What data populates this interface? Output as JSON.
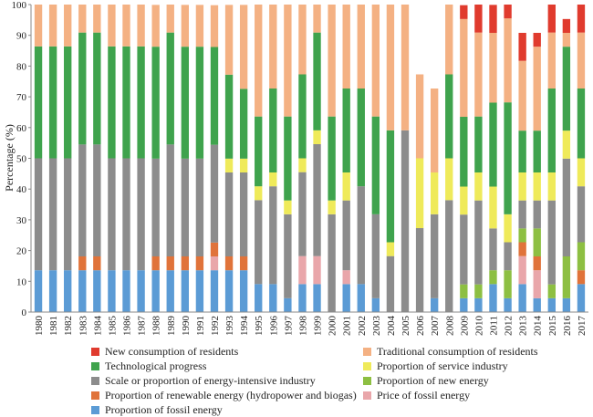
{
  "chart_data": {
    "type": "bar",
    "stacked": true,
    "ylabel": "Percentage (%)",
    "ylim": [
      0,
      100
    ],
    "yticks": [
      0,
      10,
      20,
      30,
      40,
      50,
      60,
      70,
      80,
      90,
      100
    ],
    "grid": false,
    "legend_position": "bottom",
    "categories": [
      "1980",
      "1981",
      "1982",
      "1983",
      "1984",
      "1985",
      "1986",
      "1987",
      "1988",
      "1989",
      "1990",
      "1991",
      "1992",
      "1993",
      "1994",
      "1995",
      "1996",
      "1997",
      "1998",
      "1999",
      "2000",
      "2001",
      "2002",
      "2003",
      "2004",
      "2005",
      "2006",
      "2007",
      "2008",
      "2009",
      "2010",
      "2011",
      "2012",
      "2013",
      "2014",
      "2015",
      "2016",
      "2017"
    ],
    "series": [
      {
        "name": "Proportion of fossil energy",
        "color": "#5B9BD5",
        "values": [
          13.6,
          13.6,
          13.6,
          13.6,
          13.6,
          13.6,
          13.6,
          13.6,
          13.6,
          13.6,
          13.6,
          13.6,
          13.6,
          13.6,
          13.6,
          9.1,
          9.1,
          4.5,
          9.1,
          9.1,
          0,
          9.1,
          9.1,
          4.5,
          0,
          0,
          0,
          4.5,
          0,
          4.5,
          4.5,
          9.1,
          4.5,
          9.1,
          4.5,
          4.5,
          4.5,
          9.1
        ]
      },
      {
        "name": "Price of fossil energy",
        "color": "#E9A6AA",
        "values": [
          0,
          0,
          0,
          0,
          0,
          0,
          0,
          0,
          0,
          0,
          0,
          0,
          4.5,
          0,
          0,
          0,
          0,
          0,
          9.1,
          9.1,
          0,
          4.5,
          0,
          0,
          0,
          0,
          0,
          0,
          0,
          0,
          0,
          0,
          0,
          9.1,
          9.1,
          0,
          0,
          0
        ]
      },
      {
        "name": "Proportion of renewable energy (hydropower and biogas)",
        "color": "#E0733A",
        "values": [
          0,
          0,
          0,
          4.5,
          4.5,
          0,
          0,
          0,
          4.5,
          4.5,
          4.5,
          4.5,
          4.5,
          4.5,
          4.5,
          0,
          0,
          0,
          0,
          0,
          0,
          0,
          0,
          0,
          0,
          0,
          0,
          0,
          0,
          0,
          0,
          0,
          0,
          4.5,
          4.5,
          0,
          0,
          4.5
        ]
      },
      {
        "name": "Proportion of new energy",
        "color": "#8DBF42",
        "values": [
          0,
          0,
          0,
          0,
          0,
          0,
          0,
          0,
          0,
          0,
          0,
          0,
          0,
          0,
          0,
          0,
          0,
          0,
          0,
          0,
          0,
          0,
          0,
          0,
          0,
          0,
          0,
          0,
          0,
          4.5,
          4.5,
          4.5,
          9.1,
          4.5,
          9.1,
          4.5,
          13.6,
          9.1
        ]
      },
      {
        "name": "Scale or proportion of energy-intensive industry",
        "color": "#8C8C8C",
        "values": [
          36.4,
          36.4,
          36.4,
          36.4,
          36.4,
          36.4,
          36.4,
          36.4,
          31.8,
          36.4,
          31.8,
          31.8,
          31.8,
          27.3,
          27.3,
          27.3,
          31.8,
          27.3,
          27.3,
          36.4,
          31.8,
          22.7,
          31.8,
          27.3,
          18.2,
          59.1,
          27.3,
          27.3,
          36.4,
          22.7,
          27.3,
          13.6,
          9.1,
          9.1,
          9.1,
          27.3,
          31.8,
          18.2
        ]
      },
      {
        "name": "Proportion of service industry",
        "color": "#EFEA5A",
        "values": [
          0,
          0,
          0,
          0,
          0,
          0,
          0,
          0,
          0,
          0,
          0,
          0,
          0,
          4.5,
          4.5,
          4.5,
          4.5,
          4.5,
          4.5,
          4.5,
          4.5,
          9.1,
          0,
          0,
          4.5,
          0,
          22.7,
          13.6,
          13.6,
          9.1,
          9.1,
          13.6,
          9.1,
          9.1,
          9.1,
          9.1,
          9.1,
          9.1
        ]
      },
      {
        "name": "Technological progress",
        "color": "#3FA34D",
        "values": [
          36.4,
          36.4,
          36.4,
          36.4,
          36.4,
          36.4,
          36.4,
          36.4,
          36.4,
          36.4,
          36.4,
          36.4,
          31.8,
          27.3,
          22.7,
          22.7,
          27.3,
          27.3,
          27.3,
          31.8,
          27.3,
          27.3,
          31.8,
          31.8,
          36.4,
          0,
          0,
          0,
          27.3,
          22.7,
          18.2,
          27.3,
          36.4,
          13.6,
          13.6,
          27.3,
          27.3,
          22.7
        ]
      },
      {
        "name": "Traditional consumption of residents",
        "color": "#F4B183",
        "values": [
          13.6,
          13.6,
          13.6,
          9.1,
          9.1,
          13.6,
          13.6,
          13.6,
          13.6,
          9.1,
          13.6,
          13.6,
          13.6,
          22.7,
          27.3,
          36.4,
          27.3,
          36.4,
          22.7,
          9.1,
          36.4,
          27.3,
          27.3,
          36.4,
          40.9,
          40.9,
          27.3,
          27.3,
          22.7,
          31.8,
          27.3,
          22.7,
          27.3,
          22.7,
          27.3,
          18.2,
          4.5,
          18.2
        ]
      },
      {
        "name": "New consumption of residents",
        "color": "#E03B2E",
        "values": [
          0,
          0,
          0,
          0,
          0,
          0,
          0,
          0,
          0,
          0,
          0,
          0,
          0,
          0,
          0,
          0,
          0,
          0,
          0,
          0,
          0,
          0,
          0,
          0,
          0,
          0,
          0,
          0,
          0,
          4.5,
          9.1,
          9.1,
          4.5,
          9.1,
          4.5,
          9.1,
          4.5,
          9.1
        ]
      }
    ],
    "legend_order": [
      "New consumption of residents",
      "Traditional consumption of residents",
      "Technological progress",
      "Proportion of service industry",
      "Scale or proportion of energy-intensive industry",
      "Proportion of new energy",
      "Proportion of renewable energy (hydropower and biogas)",
      "Price of fossil energy",
      "Proportion of fossil energy"
    ]
  }
}
